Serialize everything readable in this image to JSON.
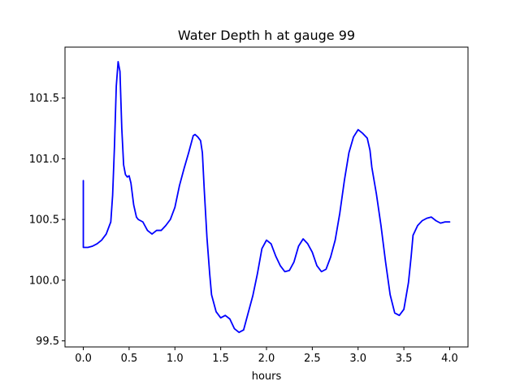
{
  "chart_data": {
    "type": "line",
    "title": "Water Depth h at gauge 99",
    "xlabel": "hours",
    "ylabel": "",
    "xlim": [
      -0.2,
      4.2
    ],
    "ylim": [
      99.45,
      101.92
    ],
    "xticks": [
      0.0,
      0.5,
      1.0,
      1.5,
      2.0,
      2.5,
      3.0,
      3.5,
      4.0
    ],
    "xtick_labels": [
      "0.0",
      "0.5",
      "1.0",
      "1.5",
      "2.0",
      "2.5",
      "3.0",
      "3.5",
      "4.0"
    ],
    "yticks": [
      99.5,
      100.0,
      100.5,
      101.0,
      101.5
    ],
    "ytick_labels": [
      "99.5",
      "100.0",
      "100.5",
      "101.0",
      "101.5"
    ],
    "grid": false,
    "line_color": "#0000ff",
    "series": [
      {
        "x": [
          0.0,
          0.0,
          0.05,
          0.1,
          0.15,
          0.2,
          0.25,
          0.3,
          0.32,
          0.34,
          0.36,
          0.38,
          0.4,
          0.42,
          0.44,
          0.46,
          0.48,
          0.5,
          0.52,
          0.55,
          0.58,
          0.6,
          0.65,
          0.7,
          0.75,
          0.8,
          0.85,
          0.9,
          0.95,
          1.0,
          1.05,
          1.1,
          1.15,
          1.2,
          1.22,
          1.25,
          1.28,
          1.3,
          1.32,
          1.35,
          1.38,
          1.4,
          1.45,
          1.5,
          1.55,
          1.6,
          1.65,
          1.7,
          1.75,
          1.8,
          1.85,
          1.9,
          1.95,
          2.0,
          2.05,
          2.1,
          2.15,
          2.2,
          2.25,
          2.3,
          2.35,
          2.4,
          2.45,
          2.5,
          2.55,
          2.6,
          2.65,
          2.7,
          2.75,
          2.8,
          2.85,
          2.9,
          2.95,
          3.0,
          3.05,
          3.1,
          3.13,
          3.15,
          3.2,
          3.25,
          3.3,
          3.35,
          3.4,
          3.45,
          3.5,
          3.55,
          3.58,
          3.6,
          3.65,
          3.7,
          3.75,
          3.8,
          3.85,
          3.9,
          3.95,
          4.0
        ],
        "y": [
          100.82,
          100.27,
          100.27,
          100.28,
          100.3,
          100.33,
          100.38,
          100.48,
          100.7,
          101.1,
          101.6,
          101.8,
          101.72,
          101.25,
          100.95,
          100.87,
          100.85,
          100.86,
          100.8,
          100.62,
          100.52,
          100.5,
          100.48,
          100.41,
          100.38,
          100.41,
          100.41,
          100.45,
          100.5,
          100.6,
          100.78,
          100.92,
          101.05,
          101.19,
          101.2,
          101.18,
          101.15,
          101.05,
          100.75,
          100.35,
          100.05,
          99.88,
          99.74,
          99.69,
          99.71,
          99.68,
          99.6,
          99.57,
          99.59,
          99.73,
          99.87,
          100.05,
          100.26,
          100.33,
          100.3,
          100.2,
          100.12,
          100.07,
          100.08,
          100.15,
          100.28,
          100.34,
          100.3,
          100.23,
          100.12,
          100.07,
          100.09,
          100.19,
          100.33,
          100.55,
          100.82,
          101.05,
          101.18,
          101.24,
          101.21,
          101.17,
          101.07,
          100.93,
          100.71,
          100.45,
          100.15,
          99.88,
          99.73,
          99.71,
          99.76,
          99.98,
          100.2,
          100.37,
          100.45,
          100.49,
          100.51,
          100.52,
          100.49,
          100.47,
          100.48,
          100.48
        ]
      }
    ]
  }
}
